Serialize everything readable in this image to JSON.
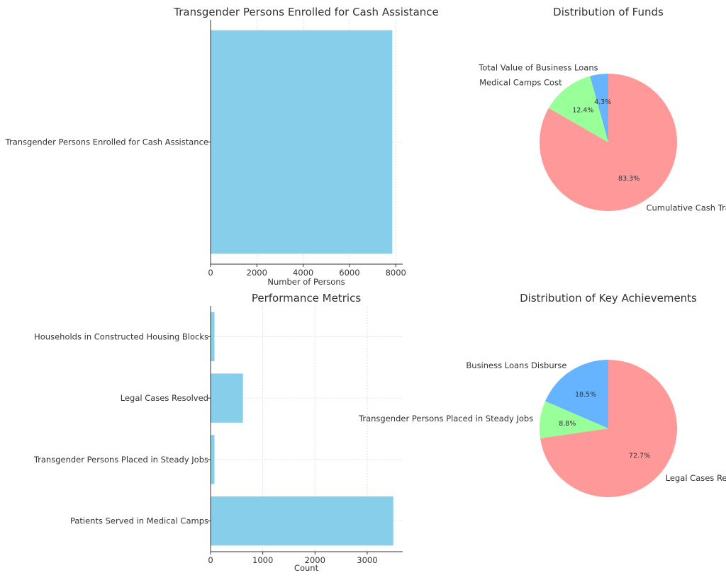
{
  "chart_data": [
    {
      "type": "bar",
      "orientation": "horizontal",
      "title": "Transgender Persons Enrolled for Cash Assistance",
      "categories": [
        "Transgender Persons Enrolled for Cash Assistance"
      ],
      "values": [
        7850
      ],
      "xlabel": "Number of Persons",
      "ylabel": "",
      "xlim": [
        0,
        8300
      ],
      "xticks": [
        0,
        2000,
        4000,
        6000,
        8000
      ],
      "xtick_labels": [
        "0",
        "2000",
        "4000",
        "6000",
        "8000"
      ],
      "grid": true,
      "color": "#87ceeb"
    },
    {
      "type": "pie",
      "title": "Distribution of Funds",
      "labels": [
        "Total Value of Business Loans",
        "Medical Camps Cost",
        "Cumulative Cash Transfers"
      ],
      "label_text": [
        "Total Value of Business Loans",
        "Medical Camps Cost",
        "Cumulative Cash Trans"
      ],
      "values": [
        4.3,
        12.4,
        83.3
      ],
      "pct_labels": [
        "4.3%",
        "12.4%",
        "83.3%"
      ],
      "colors": [
        "#66b3ff",
        "#99ff99",
        "#ff9999"
      ],
      "start_angle_deg": 90
    },
    {
      "type": "bar",
      "orientation": "horizontal",
      "title": "Performance Metrics",
      "categories": [
        "Households in Constructed Housing Blocks",
        "Legal Cases Resolved",
        "Transgender Persons Placed in Steady Jobs",
        "Patients Served in Medical Camps"
      ],
      "values": [
        75,
        620,
        75,
        3500
      ],
      "xlabel": "Count",
      "ylabel": "",
      "xlim": [
        0,
        3680
      ],
      "xticks": [
        0,
        1000,
        2000,
        3000
      ],
      "xtick_labels": [
        "0",
        "1000",
        "2000",
        "3000"
      ],
      "grid": true,
      "color": "#87ceeb"
    },
    {
      "type": "pie",
      "title": "Distribution of Key Achievements",
      "labels": [
        "Business Loans Disbursed",
        "Transgender Persons Placed in Steady Jobs",
        "Legal Cases Resolved"
      ],
      "label_text": [
        "Business Loans Disburse",
        "Transgender Persons Placed in Steady Jobs",
        "Legal Cases Resolved"
      ],
      "values": [
        18.5,
        8.8,
        72.7
      ],
      "pct_labels": [
        "18.5%",
        "8.8%",
        "72.7%"
      ],
      "colors": [
        "#66b3ff",
        "#99ff99",
        "#ff9999"
      ],
      "start_angle_deg": 90
    }
  ]
}
